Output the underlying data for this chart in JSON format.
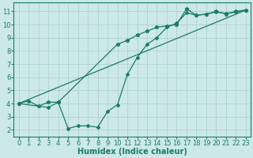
{
  "line_straight": {
    "x": [
      0,
      23
    ],
    "y": [
      4.0,
      11.1
    ],
    "color": "#1a7a6a",
    "marker": null,
    "markersize": 0,
    "linewidth": 0.9
  },
  "line_upper": {
    "x": [
      0,
      1,
      2,
      3,
      4,
      10,
      11,
      12,
      13,
      14,
      15,
      16,
      17,
      18,
      19,
      20,
      21,
      22,
      23
    ],
    "y": [
      4.0,
      4.2,
      3.8,
      4.1,
      4.1,
      8.5,
      8.8,
      9.2,
      9.5,
      9.8,
      9.9,
      10.0,
      11.2,
      10.7,
      10.8,
      11.0,
      10.8,
      11.0,
      11.1
    ],
    "color": "#1a7a6a",
    "marker": "*",
    "markersize": 3.5,
    "linewidth": 0.9
  },
  "line_lower": {
    "x": [
      0,
      3,
      4,
      5,
      6,
      7,
      8,
      9,
      10,
      11,
      12,
      13,
      14,
      15,
      16,
      17,
      18,
      19,
      20,
      21,
      22,
      23
    ],
    "y": [
      4.0,
      3.7,
      4.1,
      2.1,
      2.3,
      2.3,
      2.2,
      3.4,
      3.9,
      6.2,
      7.5,
      8.5,
      9.0,
      9.8,
      10.1,
      10.9,
      10.7,
      10.8,
      10.95,
      10.85,
      10.95,
      11.1
    ],
    "color": "#1a7a6a",
    "marker": "D",
    "markersize": 2.0,
    "linewidth": 0.9
  },
  "xlabel": "Humidex (Indice chaleur)",
  "xlim": [
    -0.5,
    23.5
  ],
  "ylim": [
    1.5,
    11.7
  ],
  "yticks": [
    2,
    3,
    4,
    5,
    6,
    7,
    8,
    9,
    10,
    11
  ],
  "xticks": [
    0,
    1,
    2,
    3,
    4,
    5,
    6,
    7,
    8,
    9,
    10,
    11,
    12,
    13,
    14,
    15,
    16,
    17,
    18,
    19,
    20,
    21,
    22,
    23
  ],
  "background_color": "#cce8e8",
  "grid_color": "#aacece",
  "line_color": "#1a7a6a",
  "xlabel_fontsize": 7,
  "tick_fontsize": 6
}
